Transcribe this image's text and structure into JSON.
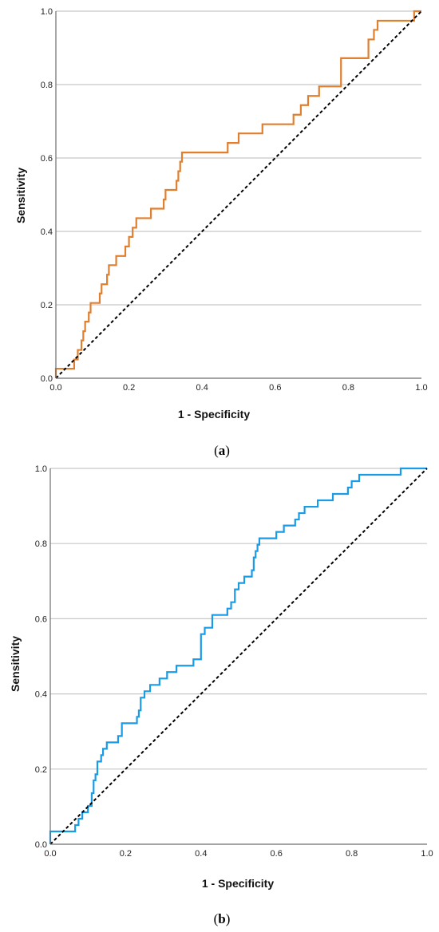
{
  "chart_data": [
    {
      "type": "line",
      "caption_open": "(",
      "caption_letter": "a",
      "caption_close": ")",
      "xlabel": "1 - Specificity",
      "ylabel": "Sensitivity",
      "xlim": [
        0,
        1
      ],
      "ylim": [
        0,
        1
      ],
      "xticks": [
        "0.0",
        "0.2",
        "0.4",
        "0.6",
        "0.8",
        "1.0"
      ],
      "yticks": [
        "0.0",
        "0.2",
        "0.4",
        "0.6",
        "0.8",
        "1.0"
      ],
      "grid": "horizontal",
      "series": [
        {
          "color": "#e07f2e",
          "x": [
            0,
            0,
            0.05,
            0.05,
            0.06,
            0.06,
            0.07,
            0.07,
            0.075,
            0.075,
            0.08,
            0.08,
            0.09,
            0.09,
            0.095,
            0.095,
            0.12,
            0.12,
            0.125,
            0.125,
            0.14,
            0.14,
            0.145,
            0.145,
            0.165,
            0.165,
            0.19,
            0.19,
            0.2,
            0.2,
            0.21,
            0.21,
            0.22,
            0.22,
            0.26,
            0.26,
            0.295,
            0.295,
            0.3,
            0.3,
            0.305,
            0.305,
            0.33,
            0.33,
            0.335,
            0.335,
            0.34,
            0.34,
            0.345,
            0.345,
            0.47,
            0.47,
            0.5,
            0.5,
            0.565,
            0.565,
            0.65,
            0.65,
            0.67,
            0.67,
            0.675,
            0.675,
            0.69,
            0.69,
            0.72,
            0.72,
            0.735,
            0.735,
            0.78,
            0.78,
            0.855,
            0.855,
            0.87,
            0.87,
            0.88,
            0.88,
            0.88,
            0.98,
            0.98,
            1.0
          ],
          "y": [
            0,
            0.026,
            0.026,
            0.051,
            0.051,
            0.077,
            0.077,
            0.103,
            0.103,
            0.128,
            0.128,
            0.154,
            0.154,
            0.179,
            0.179,
            0.205,
            0.205,
            0.231,
            0.231,
            0.256,
            0.256,
            0.282,
            0.282,
            0.308,
            0.308,
            0.333,
            0.333,
            0.359,
            0.359,
            0.385,
            0.385,
            0.41,
            0.41,
            0.436,
            0.436,
            0.462,
            0.462,
            0.487,
            0.487,
            0.513,
            0.513,
            0.513,
            0.513,
            0.538,
            0.538,
            0.564,
            0.564,
            0.59,
            0.59,
            0.615,
            0.615,
            0.641,
            0.641,
            0.667,
            0.667,
            0.692,
            0.692,
            0.718,
            0.718,
            0.744,
            0.744,
            0.744,
            0.744,
            0.769,
            0.769,
            0.795,
            0.795,
            0.795,
            0.795,
            0.872,
            0.872,
            0.923,
            0.923,
            0.949,
            0.949,
            0.974,
            0.974,
            0.974,
            1.0,
            1.0
          ]
        },
        {
          "color": "#000000",
          "dashed": true,
          "x": [
            0,
            1
          ],
          "y": [
            0,
            1
          ]
        }
      ]
    },
    {
      "type": "line",
      "caption_open": "(",
      "caption_letter": "b",
      "caption_close": ")",
      "xlabel": "1 - Specificity",
      "ylabel": "Sensitivity",
      "xlim": [
        0,
        1
      ],
      "ylim": [
        0,
        1
      ],
      "xticks": [
        "0.0",
        "0.2",
        "0.4",
        "0.6",
        "0.8",
        "1.0"
      ],
      "yticks": [
        "0.0",
        "0.2",
        "0.4",
        "0.6",
        "0.8",
        "1.0"
      ],
      "grid": "horizontal",
      "series": [
        {
          "color": "#1a9be6",
          "x": [
            0,
            0,
            0.016,
            0.016,
            0.066,
            0.066,
            0.075,
            0.075,
            0.085,
            0.085,
            0.1,
            0.1,
            0.11,
            0.11,
            0.115,
            0.115,
            0.12,
            0.12,
            0.125,
            0.125,
            0.135,
            0.135,
            0.14,
            0.14,
            0.15,
            0.15,
            0.18,
            0.18,
            0.19,
            0.19,
            0.23,
            0.23,
            0.235,
            0.235,
            0.24,
            0.24,
            0.25,
            0.25,
            0.265,
            0.265,
            0.29,
            0.29,
            0.31,
            0.31,
            0.335,
            0.335,
            0.38,
            0.38,
            0.4,
            0.4,
            0.41,
            0.41,
            0.43,
            0.43,
            0.47,
            0.47,
            0.48,
            0.48,
            0.49,
            0.49,
            0.5,
            0.5,
            0.515,
            0.515,
            0.535,
            0.535,
            0.54,
            0.54,
            0.545,
            0.545,
            0.55,
            0.55,
            0.555,
            0.555,
            0.6,
            0.6,
            0.62,
            0.62,
            0.65,
            0.65,
            0.66,
            0.66,
            0.675,
            0.675,
            0.71,
            0.71,
            0.75,
            0.75,
            0.79,
            0.79,
            0.8,
            0.8,
            0.82,
            0.82,
            0.93,
            0.93,
            0.99,
            0.99,
            1.0
          ],
          "y": [
            0,
            0.034,
            0.034,
            0.034,
            0.034,
            0.051,
            0.051,
            0.068,
            0.068,
            0.085,
            0.085,
            0.102,
            0.102,
            0.136,
            0.136,
            0.17,
            0.17,
            0.186,
            0.186,
            0.22,
            0.22,
            0.237,
            0.237,
            0.254,
            0.254,
            0.271,
            0.271,
            0.288,
            0.288,
            0.322,
            0.322,
            0.339,
            0.339,
            0.356,
            0.356,
            0.39,
            0.39,
            0.407,
            0.407,
            0.424,
            0.424,
            0.441,
            0.441,
            0.458,
            0.458,
            0.475,
            0.475,
            0.492,
            0.492,
            0.559,
            0.559,
            0.576,
            0.576,
            0.61,
            0.61,
            0.627,
            0.627,
            0.644,
            0.644,
            0.678,
            0.678,
            0.695,
            0.695,
            0.712,
            0.712,
            0.729,
            0.729,
            0.763,
            0.763,
            0.78,
            0.78,
            0.797,
            0.797,
            0.814,
            0.814,
            0.831,
            0.831,
            0.848,
            0.848,
            0.864,
            0.864,
            0.881,
            0.881,
            0.898,
            0.898,
            0.915,
            0.915,
            0.932,
            0.932,
            0.949,
            0.949,
            0.966,
            0.966,
            0.983,
            0.983,
            1.0,
            1.0,
            1.0,
            1.0
          ],
          "step_end": true
        },
        {
          "color": "#000000",
          "dashed": true,
          "x": [
            0,
            1
          ],
          "y": [
            0,
            1
          ]
        }
      ]
    }
  ]
}
